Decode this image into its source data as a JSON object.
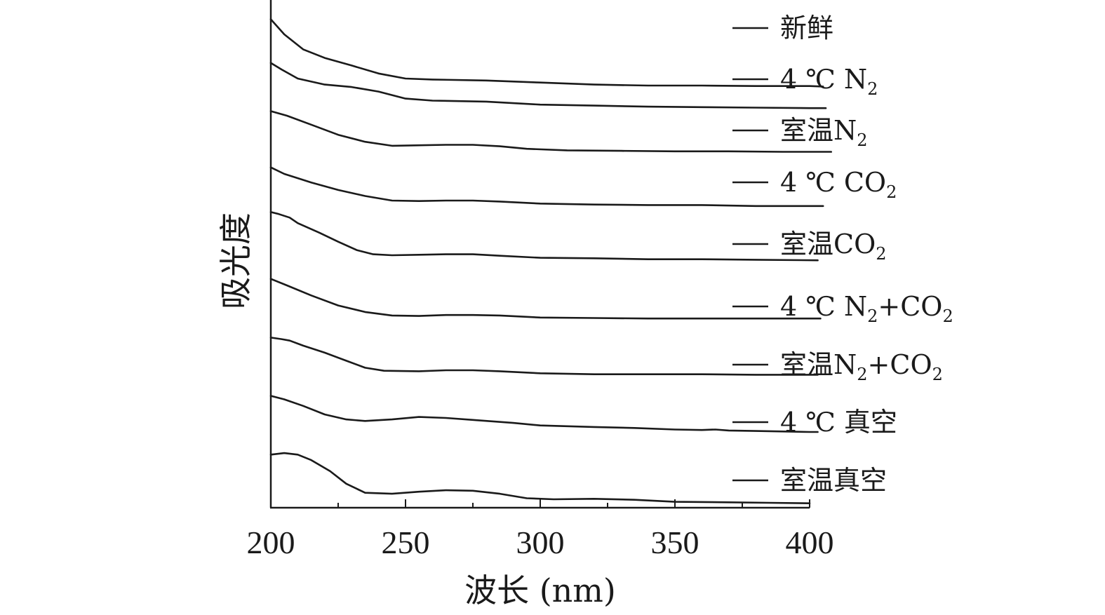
{
  "chart_data": {
    "type": "line",
    "xlabel": "波长 (nm)",
    "ylabel": "吸光度",
    "xlim": [
      200,
      400
    ],
    "x_ticks": [
      200,
      250,
      300,
      350,
      400
    ],
    "y_ticks_labeled": false,
    "grid": false,
    "legend_position": "right, beside each curve",
    "line_color": "#1a1a1a",
    "series": [
      {
        "name": "新鲜",
        "label_parts": [
          {
            "t": "新鲜"
          }
        ],
        "points": [
          [
            200,
            0.97
          ],
          [
            205,
            0.94
          ],
          [
            212,
            0.91
          ],
          [
            220,
            0.893
          ],
          [
            230,
            0.878
          ],
          [
            240,
            0.862
          ],
          [
            250,
            0.852
          ],
          [
            260,
            0.85
          ],
          [
            280,
            0.848
          ],
          [
            300,
            0.844
          ],
          [
            320,
            0.84
          ],
          [
            340,
            0.838
          ],
          [
            360,
            0.838
          ],
          [
            380,
            0.837
          ],
          [
            400,
            0.837
          ],
          [
            405,
            0.836
          ]
        ]
      },
      {
        "name": "4 ℃ N2",
        "label_parts": [
          {
            "t": "4 ℃ N"
          },
          {
            "t": "2",
            "sub": true
          }
        ],
        "points": [
          [
            200,
            0.883
          ],
          [
            204,
            0.87
          ],
          [
            210,
            0.852
          ],
          [
            220,
            0.84
          ],
          [
            230,
            0.835
          ],
          [
            240,
            0.826
          ],
          [
            250,
            0.812
          ],
          [
            260,
            0.808
          ],
          [
            280,
            0.806
          ],
          [
            300,
            0.8
          ],
          [
            320,
            0.798
          ],
          [
            340,
            0.796
          ],
          [
            360,
            0.795
          ],
          [
            380,
            0.794
          ],
          [
            400,
            0.793
          ],
          [
            406,
            0.793
          ]
        ]
      },
      {
        "name": "室温N2",
        "label_parts": [
          {
            "t": "室温N"
          },
          {
            "t": "2",
            "sub": true
          }
        ],
        "points": [
          [
            200,
            0.787
          ],
          [
            206,
            0.778
          ],
          [
            215,
            0.76
          ],
          [
            225,
            0.74
          ],
          [
            235,
            0.726
          ],
          [
            245,
            0.718
          ],
          [
            255,
            0.719
          ],
          [
            265,
            0.72
          ],
          [
            275,
            0.72
          ],
          [
            285,
            0.717
          ],
          [
            295,
            0.712
          ],
          [
            310,
            0.709
          ],
          [
            330,
            0.708
          ],
          [
            350,
            0.707
          ],
          [
            370,
            0.707
          ],
          [
            390,
            0.706
          ],
          [
            408,
            0.706
          ]
        ]
      },
      {
        "name": "4 ℃ CO2",
        "label_parts": [
          {
            "t": "4 ℃ CO"
          },
          {
            "t": "2",
            "sub": true
          }
        ],
        "points": [
          [
            200,
            0.675
          ],
          [
            205,
            0.662
          ],
          [
            215,
            0.645
          ],
          [
            225,
            0.63
          ],
          [
            235,
            0.618
          ],
          [
            245,
            0.609
          ],
          [
            255,
            0.608
          ],
          [
            265,
            0.609
          ],
          [
            275,
            0.609
          ],
          [
            285,
            0.607
          ],
          [
            300,
            0.603
          ],
          [
            320,
            0.601
          ],
          [
            340,
            0.6
          ],
          [
            360,
            0.6
          ],
          [
            380,
            0.598
          ],
          [
            405,
            0.598
          ]
        ]
      },
      {
        "name": "室温CO2",
        "label_parts": [
          {
            "t": "室温CO"
          },
          {
            "t": "2",
            "sub": true
          }
        ],
        "points": [
          [
            200,
            0.586
          ],
          [
            203,
            0.582
          ],
          [
            207,
            0.575
          ],
          [
            210,
            0.564
          ],
          [
            218,
            0.545
          ],
          [
            225,
            0.527
          ],
          [
            232,
            0.51
          ],
          [
            238,
            0.502
          ],
          [
            245,
            0.5
          ],
          [
            255,
            0.501
          ],
          [
            265,
            0.502
          ],
          [
            275,
            0.502
          ],
          [
            285,
            0.499
          ],
          [
            300,
            0.495
          ],
          [
            320,
            0.494
          ],
          [
            340,
            0.492
          ],
          [
            360,
            0.492
          ],
          [
            380,
            0.491
          ],
          [
            403,
            0.49
          ]
        ]
      },
      {
        "name": "4 ℃ N2+CO2",
        "label_parts": [
          {
            "t": "4 ℃ N"
          },
          {
            "t": "2",
            "sub": true
          },
          {
            "t": "+CO"
          },
          {
            "t": "2",
            "sub": true
          }
        ],
        "points": [
          [
            200,
            0.453
          ],
          [
            206,
            0.44
          ],
          [
            215,
            0.42
          ],
          [
            225,
            0.4
          ],
          [
            235,
            0.387
          ],
          [
            245,
            0.38
          ],
          [
            255,
            0.379
          ],
          [
            265,
            0.381
          ],
          [
            275,
            0.381
          ],
          [
            285,
            0.38
          ],
          [
            300,
            0.376
          ],
          [
            320,
            0.375
          ],
          [
            340,
            0.374
          ],
          [
            360,
            0.374
          ],
          [
            380,
            0.374
          ],
          [
            404,
            0.374
          ]
        ]
      },
      {
        "name": "室温N2+CO2",
        "label_parts": [
          {
            "t": "室温N"
          },
          {
            "t": "2",
            "sub": true
          },
          {
            "t": "+CO"
          },
          {
            "t": "2",
            "sub": true
          }
        ],
        "points": [
          [
            200,
            0.336
          ],
          [
            204,
            0.333
          ],
          [
            207,
            0.33
          ],
          [
            212,
            0.32
          ],
          [
            220,
            0.306
          ],
          [
            228,
            0.29
          ],
          [
            235,
            0.276
          ],
          [
            242,
            0.27
          ],
          [
            255,
            0.269
          ],
          [
            265,
            0.271
          ],
          [
            275,
            0.271
          ],
          [
            285,
            0.269
          ],
          [
            300,
            0.265
          ],
          [
            320,
            0.263
          ],
          [
            340,
            0.263
          ],
          [
            360,
            0.263
          ],
          [
            380,
            0.262
          ],
          [
            403,
            0.262
          ]
        ]
      },
      {
        "name": "4 ℃ 真空",
        "label_parts": [
          {
            "t": "4 ℃ 真空"
          }
        ],
        "points": [
          [
            200,
            0.22
          ],
          [
            205,
            0.213
          ],
          [
            212,
            0.2
          ],
          [
            220,
            0.183
          ],
          [
            228,
            0.173
          ],
          [
            235,
            0.17
          ],
          [
            245,
            0.173
          ],
          [
            255,
            0.178
          ],
          [
            265,
            0.176
          ],
          [
            275,
            0.172
          ],
          [
            290,
            0.166
          ],
          [
            300,
            0.161
          ],
          [
            320,
            0.158
          ],
          [
            335,
            0.156
          ],
          [
            350,
            0.153
          ],
          [
            360,
            0.152
          ],
          [
            365,
            0.153
          ],
          [
            370,
            0.151
          ],
          [
            380,
            0.15
          ],
          [
            400,
            0.148
          ],
          [
            403,
            0.148
          ]
        ]
      },
      {
        "name": "室温真空",
        "label_parts": [
          {
            "t": "室温真空"
          }
        ],
        "points": [
          [
            200,
            0.103
          ],
          [
            205,
            0.106
          ],
          [
            210,
            0.103
          ],
          [
            215,
            0.092
          ],
          [
            222,
            0.07
          ],
          [
            228,
            0.045
          ],
          [
            235,
            0.027
          ],
          [
            245,
            0.025
          ],
          [
            255,
            0.029
          ],
          [
            265,
            0.032
          ],
          [
            275,
            0.031
          ],
          [
            285,
            0.025
          ],
          [
            295,
            0.016
          ],
          [
            305,
            0.014
          ],
          [
            320,
            0.015
          ],
          [
            335,
            0.013
          ],
          [
            350,
            0.009
          ],
          [
            370,
            0.008
          ],
          [
            385,
            0.007
          ],
          [
            400,
            0.006
          ]
        ]
      }
    ]
  }
}
